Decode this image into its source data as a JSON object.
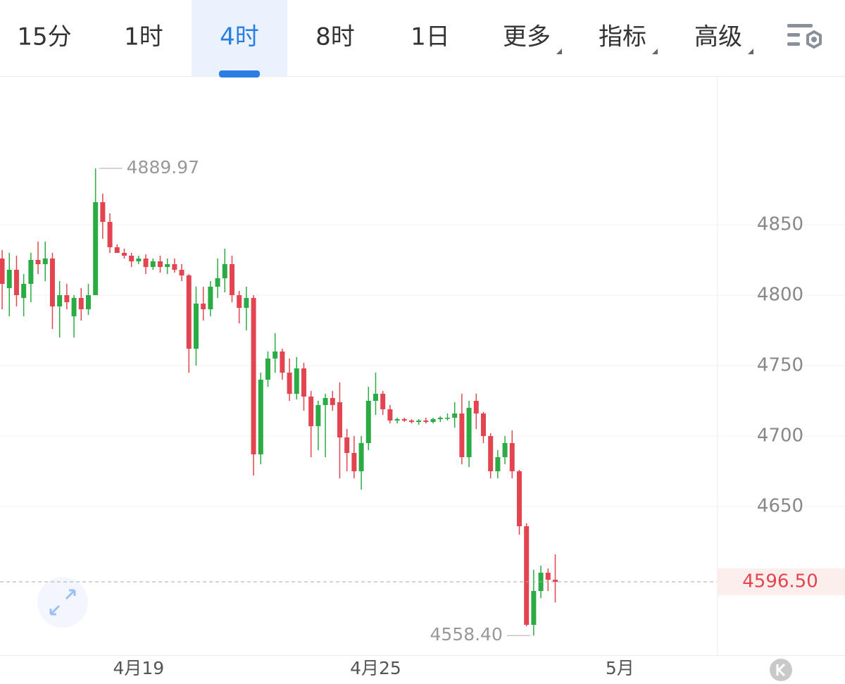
{
  "toolbar": {
    "tabs": [
      "15分",
      "1时",
      "4时",
      "8时",
      "1日",
      "更多",
      "指标",
      "高级"
    ],
    "active": 2
  },
  "chart_data": {
    "type": "candlestick",
    "x": [
      0,
      1,
      2,
      3,
      4,
      5,
      6,
      7,
      8,
      9,
      10,
      11,
      12,
      13,
      14,
      15,
      16,
      17,
      18,
      19,
      20,
      21,
      22,
      23,
      24,
      25,
      26,
      27,
      28,
      29,
      30,
      31,
      32,
      33,
      34,
      35,
      36,
      37,
      38,
      39,
      40,
      41,
      42,
      43,
      44,
      45,
      46,
      47,
      48,
      49,
      50,
      51,
      52,
      53,
      54,
      55,
      56,
      57,
      58,
      59,
      60,
      61,
      62,
      63,
      64,
      65,
      66,
      67,
      68,
      69,
      70,
      71,
      72,
      73,
      74,
      75,
      76,
      77
    ],
    "open": [
      4826,
      4805,
      4818,
      4798,
      4808,
      4825,
      4822,
      4826,
      4792,
      4800,
      4785,
      4798,
      4790,
      4800,
      4866,
      4852,
      4834,
      4830,
      4828,
      4824,
      4826,
      4820,
      4824,
      4820,
      4822,
      4818,
      4814,
      4762,
      4794,
      4790,
      4806,
      4812,
      4822,
      4800,
      4791,
      4798,
      4687,
      4740,
      4755,
      4760,
      4745,
      4730,
      4748,
      4728,
      4707,
      4722,
      4727,
      4724,
      4699,
      4688,
      4675,
      4695,
      4725,
      4730,
      4719,
      4711,
      4712,
      4711,
      4710,
      4711,
      4710,
      4712,
      4713,
      4713,
      4716,
      4685,
      4725,
      4716,
      4700,
      4675,
      4685,
      4695,
      4675,
      4636,
      4566,
      4590,
      4603,
      4598
    ],
    "high": [
      4832,
      4830,
      4828,
      4815,
      4830,
      4838,
      4838,
      4830,
      4810,
      4808,
      4800,
      4805,
      4808,
      4889.97,
      4872,
      4858,
      4836,
      4833,
      4830,
      4828,
      4829,
      4826,
      4828,
      4826,
      4826,
      4822,
      4815,
      4806,
      4806,
      4810,
      4826,
      4833,
      4828,
      4803,
      4806,
      4800,
      4745,
      4760,
      4773,
      4762,
      4755,
      4756,
      4752,
      4732,
      4725,
      4730,
      4732,
      4738,
      4705,
      4700,
      4700,
      4735,
      4745,
      4732,
      4722,
      4713,
      4713,
      4712,
      4712,
      4713,
      4713,
      4714,
      4716,
      4724,
      4730,
      4725,
      4730,
      4717,
      4702,
      4690,
      4700,
      4704,
      4676,
      4638,
      4605,
      4608,
      4606,
      4616
    ],
    "low": [
      4790,
      4785,
      4792,
      4785,
      4795,
      4815,
      4810,
      4776,
      4770,
      4790,
      4770,
      4782,
      4786,
      4800,
      4840,
      4830,
      4830,
      4826,
      4820,
      4822,
      4815,
      4818,
      4816,
      4815,
      4816,
      4810,
      4745,
      4750,
      4782,
      4785,
      4798,
      4802,
      4795,
      4780,
      4775,
      4672,
      4680,
      4735,
      4745,
      4740,
      4725,
      4726,
      4718,
      4685,
      4690,
      4685,
      4718,
      4670,
      4675,
      4670,
      4662,
      4690,
      4715,
      4715,
      4709,
      4709,
      4710,
      4709,
      4708,
      4709,
      4709,
      4710,
      4711,
      4706,
      4680,
      4678,
      4705,
      4695,
      4670,
      4670,
      4680,
      4670,
      4630,
      4565,
      4558.4,
      4585,
      4590,
      4582
    ],
    "close": [
      4808,
      4818,
      4800,
      4808,
      4825,
      4822,
      4826,
      4792,
      4800,
      4795,
      4798,
      4790,
      4800,
      4866,
      4852,
      4834,
      4830,
      4828,
      4824,
      4826,
      4820,
      4824,
      4820,
      4822,
      4818,
      4814,
      4762,
      4794,
      4790,
      4806,
      4812,
      4822,
      4800,
      4791,
      4798,
      4687,
      4740,
      4755,
      4760,
      4745,
      4730,
      4748,
      4728,
      4707,
      4722,
      4727,
      4722,
      4699,
      4688,
      4675,
      4695,
      4725,
      4730,
      4719,
      4711,
      4712,
      4711,
      4710,
      4711,
      4710,
      4712,
      4713,
      4713,
      4716,
      4685,
      4720,
      4716,
      4700,
      4675,
      4685,
      4695,
      4675,
      4636,
      4566,
      4590,
      4603,
      4598,
      4596.5
    ],
    "up_color": "#2bab44",
    "down_color": "#e2454f",
    "xlim": [
      -0.3,
      99.5
    ],
    "xticks": [
      {
        "value": 19,
        "label": "4月19"
      },
      {
        "value": 52,
        "label": "4月25"
      },
      {
        "value": 86,
        "label": "5月"
      }
    ],
    "ylim": [
      4544.5,
      4955.5
    ],
    "yticks": [
      4650,
      4700,
      4750,
      4800,
      4850
    ],
    "grid": true,
    "max_label": {
      "value": 4889.97,
      "label": "4889.97"
    },
    "min_label": {
      "value": 4558.4,
      "label": "4558.40"
    },
    "last_price": {
      "value": 4596.5,
      "label": "4596.50"
    }
  }
}
